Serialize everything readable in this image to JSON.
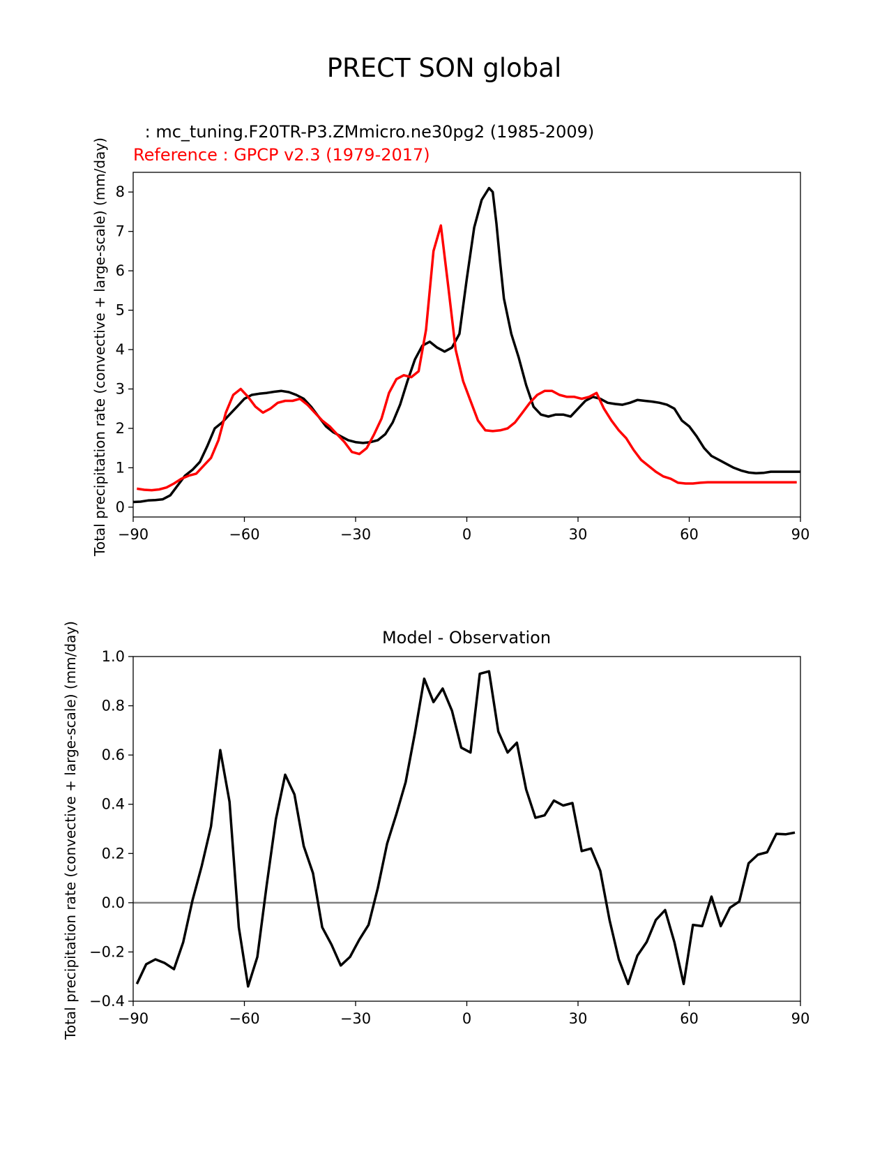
{
  "suptitle": "PRECT SON global",
  "chart_data": [
    {
      "type": "line",
      "test_label": " : mc_tuning.F20TR-P3.ZMmicro.ne30pg2 (1985-2009)",
      "ref_label": "Reference : GPCP v2.3 (1979-2017)",
      "ylabel": "Total precipitation rate (convective + large-scale) (mm/day)",
      "xlabel": "",
      "xlim": [
        -90,
        90
      ],
      "ylim": [
        -0.25,
        8.5
      ],
      "xticks": [
        -90,
        -60,
        -30,
        0,
        30,
        60,
        90
      ],
      "yticks": [
        0,
        1,
        2,
        3,
        4,
        5,
        6,
        7,
        8
      ],
      "series": [
        {
          "name": "mc_tuning.F20TR-P3.ZMmicro.ne30pg2 (1985-2009)",
          "color": "#000000",
          "x": [
            -90,
            -88,
            -86,
            -84,
            -82,
            -80,
            -78,
            -76,
            -74,
            -72,
            -70,
            -68,
            -66,
            -64,
            -62,
            -60,
            -58,
            -56,
            -54,
            -52,
            -50,
            -48,
            -46,
            -44,
            -42,
            -40,
            -38,
            -36,
            -34,
            -32,
            -30,
            -28,
            -26,
            -24,
            -22,
            -20,
            -18,
            -16,
            -14,
            -12,
            -10,
            -8,
            -6,
            -4,
            -2,
            0,
            2,
            4,
            6,
            7,
            8,
            9,
            10,
            12,
            14,
            16,
            18,
            20,
            22,
            24,
            26,
            28,
            30,
            32,
            34,
            36,
            38,
            40,
            42,
            44,
            46,
            48,
            50,
            52,
            54,
            56,
            58,
            60,
            62,
            64,
            66,
            68,
            70,
            72,
            74,
            76,
            78,
            80,
            82,
            84,
            86,
            88,
            90
          ],
          "y": [
            0.13,
            0.14,
            0.17,
            0.18,
            0.2,
            0.3,
            0.55,
            0.8,
            0.95,
            1.15,
            1.55,
            2.0,
            2.15,
            2.35,
            2.55,
            2.75,
            2.85,
            2.88,
            2.9,
            2.93,
            2.95,
            2.92,
            2.85,
            2.75,
            2.55,
            2.3,
            2.05,
            1.9,
            1.8,
            1.7,
            1.65,
            1.63,
            1.65,
            1.7,
            1.85,
            2.15,
            2.6,
            3.2,
            3.75,
            4.1,
            4.2,
            4.05,
            3.95,
            4.05,
            4.4,
            5.8,
            7.1,
            7.8,
            8.1,
            8.0,
            7.2,
            6.2,
            5.3,
            4.4,
            3.8,
            3.1,
            2.55,
            2.35,
            2.3,
            2.35,
            2.35,
            2.3,
            2.5,
            2.7,
            2.8,
            2.75,
            2.65,
            2.62,
            2.6,
            2.65,
            2.72,
            2.7,
            2.68,
            2.65,
            2.6,
            2.5,
            2.2,
            2.05,
            1.8,
            1.5,
            1.3,
            1.2,
            1.1,
            1.0,
            0.93,
            0.88,
            0.86,
            0.87,
            0.9,
            0.9,
            0.9,
            0.9,
            0.9
          ]
        },
        {
          "name": "GPCP v2.3 (1979-2017)",
          "color": "#ff0000",
          "x": [
            -89,
            -87,
            -85,
            -83,
            -81,
            -79,
            -77,
            -75,
            -73,
            -71,
            -69,
            -67,
            -65,
            -63,
            -61,
            -59,
            -57,
            -55,
            -53,
            -51,
            -49,
            -47,
            -45,
            -43,
            -41,
            -39,
            -37,
            -35,
            -33,
            -31,
            -29,
            -27,
            -25,
            -23,
            -21,
            -19,
            -17,
            -15,
            -13,
            -11,
            -9,
            -7,
            -5,
            -3,
            -1,
            1,
            3,
            5,
            7,
            9,
            11,
            13,
            15,
            17,
            19,
            21,
            23,
            25,
            27,
            29,
            31,
            33,
            35,
            37,
            39,
            41,
            43,
            45,
            47,
            49,
            51,
            53,
            55,
            57,
            59,
            61,
            63,
            65,
            67,
            69,
            71,
            73,
            75,
            77,
            79,
            81,
            83,
            85,
            87,
            89
          ],
          "y": [
            0.47,
            0.44,
            0.43,
            0.45,
            0.5,
            0.6,
            0.72,
            0.8,
            0.85,
            1.05,
            1.25,
            1.7,
            2.4,
            2.85,
            3.0,
            2.8,
            2.55,
            2.4,
            2.5,
            2.65,
            2.7,
            2.7,
            2.75,
            2.6,
            2.4,
            2.2,
            2.05,
            1.85,
            1.65,
            1.4,
            1.35,
            1.5,
            1.85,
            2.25,
            2.9,
            3.25,
            3.35,
            3.3,
            3.45,
            4.5,
            6.5,
            7.15,
            5.6,
            4.0,
            3.2,
            2.7,
            2.2,
            1.95,
            1.93,
            1.95,
            2.0,
            2.15,
            2.4,
            2.65,
            2.85,
            2.95,
            2.95,
            2.85,
            2.8,
            2.8,
            2.75,
            2.8,
            2.9,
            2.5,
            2.2,
            1.95,
            1.75,
            1.45,
            1.2,
            1.05,
            0.9,
            0.78,
            0.72,
            0.62,
            0.6,
            0.6,
            0.62,
            0.63,
            0.63,
            0.63,
            0.63,
            0.63,
            0.63,
            0.63,
            0.63,
            0.63,
            0.63,
            0.63,
            0.63,
            0.63
          ]
        }
      ]
    },
    {
      "type": "line",
      "title": "Model - Observation",
      "ylabel": "Total precipitation rate (convective + large-scale) (mm/day)",
      "xlabel": "",
      "xlim": [
        -90,
        90
      ],
      "ylim": [
        -0.4,
        1.0
      ],
      "xticks": [
        -90,
        -60,
        -30,
        0,
        30,
        60,
        90
      ],
      "yticks": [
        -0.4,
        -0.2,
        0.0,
        0.2,
        0.4,
        0.6,
        0.8,
        1.0
      ],
      "zero_line": 0,
      "series": [
        {
          "name": "",
          "color": "#000000",
          "x": [
            -89,
            -86.5,
            -84,
            -81.5,
            -79,
            -76.5,
            -74,
            -71.5,
            -69,
            -66.5,
            -64,
            -61.5,
            -59,
            -56.5,
            -54,
            -51.5,
            -49,
            -46.5,
            -44,
            -41.5,
            -39,
            -36.5,
            -34,
            -31.5,
            -29,
            -26.5,
            -24,
            -21.5,
            -19,
            -16.5,
            -14,
            -11.5,
            -9,
            -6.5,
            -4,
            -1.5,
            1,
            3.5,
            6,
            8.5,
            11,
            13.5,
            16,
            18.5,
            21,
            23.5,
            26,
            28.5,
            31,
            33.5,
            36,
            38.5,
            41,
            43.5,
            46,
            48.5,
            51,
            53.5,
            56,
            58.5,
            61,
            63.5,
            66,
            68.5,
            71,
            73.5,
            76,
            78.5,
            81,
            83.5,
            86,
            88.5
          ],
          "y": [
            -0.33,
            -0.25,
            -0.23,
            -0.245,
            -0.27,
            -0.16,
            0.01,
            0.15,
            0.31,
            0.62,
            0.41,
            -0.1,
            -0.34,
            -0.22,
            0.07,
            0.34,
            0.52,
            0.44,
            0.23,
            0.12,
            -0.1,
            -0.17,
            -0.255,
            -0.22,
            -0.15,
            -0.09,
            0.06,
            0.24,
            0.36,
            0.49,
            0.69,
            0.91,
            0.815,
            0.87,
            0.78,
            0.63,
            0.61,
            0.93,
            0.94,
            0.695,
            0.61,
            0.65,
            0.46,
            0.345,
            0.355,
            0.415,
            0.395,
            0.405,
            0.21,
            0.22,
            0.13,
            -0.07,
            -0.23,
            -0.33,
            -0.215,
            -0.16,
            -0.07,
            -0.03,
            -0.16,
            -0.33,
            -0.09,
            -0.095,
            0.025,
            -0.095,
            -0.02,
            0.005,
            0.16,
            0.195,
            0.205,
            0.28,
            0.278,
            0.285
          ]
        }
      ]
    }
  ]
}
